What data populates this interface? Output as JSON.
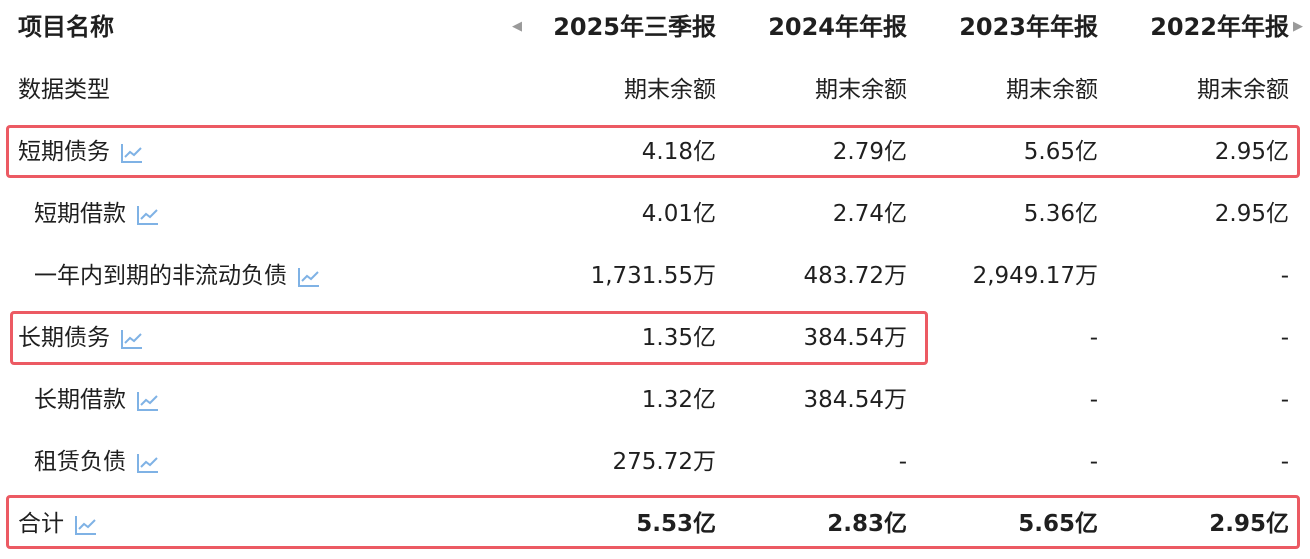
{
  "header": {
    "name_label": "项目名称",
    "periods": [
      "2025年三季报",
      "2024年年报",
      "2023年年报",
      "2022年年报"
    ]
  },
  "subheader": {
    "name_label": "数据类型",
    "values": [
      "期末余额",
      "期末余额",
      "期末余额",
      "期末余额"
    ]
  },
  "rows": [
    {
      "label": "短期债务",
      "values": [
        "4.18亿",
        "2.79亿",
        "5.65亿",
        "2.95亿"
      ]
    },
    {
      "label": "短期借款",
      "values": [
        "4.01亿",
        "2.74亿",
        "5.36亿",
        "2.95亿"
      ]
    },
    {
      "label": "一年内到期的非流动负债",
      "values": [
        "1,731.55万",
        "483.72万",
        "2,949.17万",
        "-"
      ]
    },
    {
      "label": "长期债务",
      "values": [
        "1.35亿",
        "384.54万",
        "-",
        "-"
      ]
    },
    {
      "label": "长期借款",
      "values": [
        "1.32亿",
        "384.54万",
        "-",
        "-"
      ]
    },
    {
      "label": "租赁负债",
      "values": [
        "275.72万",
        "-",
        "-",
        "-"
      ]
    },
    {
      "label": "合计",
      "values": [
        "5.53亿",
        "2.83亿",
        "5.65亿",
        "2.95亿"
      ]
    }
  ],
  "icons": {
    "trend": "line-chart-icon",
    "scroll_left": "caret-left-icon",
    "scroll_right": "caret-right-icon"
  },
  "colors": {
    "highlight": "#ec5a63",
    "trend_icon": "#7fb2e5",
    "arrow": "#9a9a9a"
  }
}
